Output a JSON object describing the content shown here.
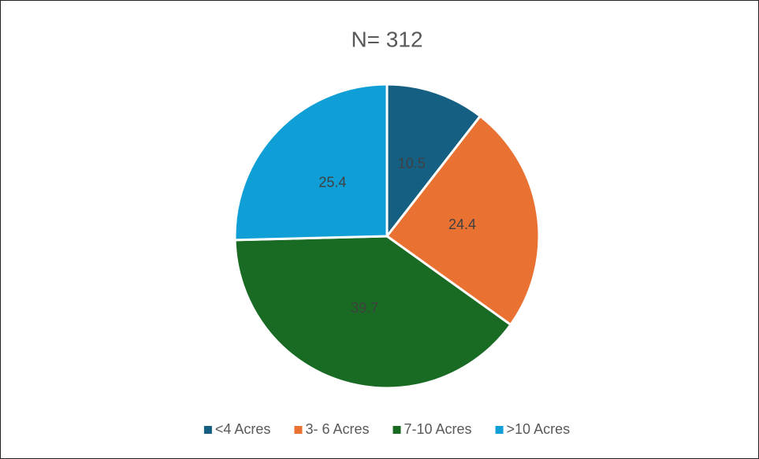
{
  "chart_data": {
    "type": "pie",
    "title": "N= 312",
    "categories": [
      "<4 Acres",
      "3- 6 Acres",
      "7-10 Acres",
      ">10 Acres"
    ],
    "values": [
      10.5,
      24.4,
      39.7,
      25.4
    ],
    "colors": [
      "#156082",
      "#e97132",
      "#196b24",
      "#0f9ed5"
    ],
    "legend": "bottom"
  }
}
